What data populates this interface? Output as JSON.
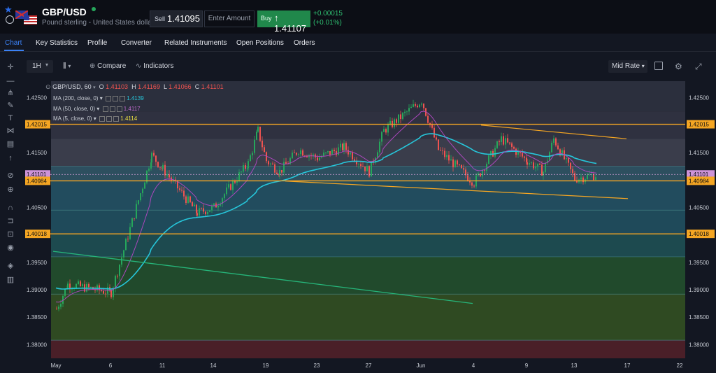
{
  "header": {
    "symbol": "GBP/USD",
    "description": "Pound sterling - United States dollar",
    "sell_label": "Sell",
    "sell_price": "1.41095",
    "amount_placeholder": "Enter Amount",
    "buy_label": "Buy",
    "buy_arrow": "↑",
    "buy_price": "1.41107",
    "change_abs": "+0.00015",
    "change_pct": "(+0.01%)"
  },
  "tabs": [
    "Chart",
    "Key Statistics",
    "Profile",
    "Converter",
    "Related Instruments",
    "Open Positions",
    "Orders"
  ],
  "toolbar": {
    "interval": "1H",
    "compare_label": "Compare",
    "indicators_label": "Indicators",
    "price_mode": "Mid Rate"
  },
  "legend": {
    "series": "GBP/USD, 60",
    "o_label": "O",
    "o": "1.41103",
    "h_label": "H",
    "h": "1.41169",
    "l_label": "L",
    "l": "1.41066",
    "c_label": "C",
    "c": "1.41101",
    "ma200_label": "MA (200, close, 0)",
    "ma200_value": "1.4139",
    "ma50_label": "MA (50, close, 0)",
    "ma50_value": "1.4117",
    "ma5_label": "MA (5, close, 0)",
    "ma5_value": "1.4114"
  },
  "colors": {
    "up": "#26a65b",
    "down": "#ef5350",
    "ma200": "#26c6da",
    "ma50": "#ab47bc",
    "ma5": "#f0e442",
    "level": "#f5a623",
    "accent": "#3b82f6"
  },
  "chart_data": {
    "type": "candlestick",
    "x_tick_labels": [
      "May",
      "6",
      "11",
      "14",
      "19",
      "23",
      "27",
      "Jun",
      "4",
      "9",
      "13",
      "17",
      "22"
    ],
    "y_tick_labels": [
      "1.42500",
      "1.42015",
      "1.41500",
      "1.41101",
      "1.40984",
      "1.40500",
      "1.40018",
      "1.39500",
      "1.39000",
      "1.38500",
      "1.38000"
    ],
    "ylim": [
      1.3775,
      1.428
    ],
    "horizontal_levels": [
      1.42015,
      1.40984,
      1.40018
    ],
    "last_price": 1.41101,
    "close_path": [
      {
        "x": "May",
        "y": 1.3865
      },
      {
        "x": "4",
        "y": 1.391
      },
      {
        "x": "6",
        "y": 1.3895
      },
      {
        "x": "10",
        "y": 1.4145
      },
      {
        "x": "11",
        "y": 1.412
      },
      {
        "x": "13",
        "y": 1.404
      },
      {
        "x": "14",
        "y": 1.405
      },
      {
        "x": "17",
        "y": 1.413
      },
      {
        "x": "18",
        "y": 1.419
      },
      {
        "x": "19",
        "y": 1.4135
      },
      {
        "x": "20",
        "y": 1.4115
      },
      {
        "x": "21",
        "y": 1.4155
      },
      {
        "x": "23",
        "y": 1.414
      },
      {
        "x": "25",
        "y": 1.416
      },
      {
        "x": "27",
        "y": 1.4115
      },
      {
        "x": "28",
        "y": 1.419
      },
      {
        "x": "Jun",
        "y": 1.4245
      },
      {
        "x": "2",
        "y": 1.4155
      },
      {
        "x": "4",
        "y": 1.4095
      },
      {
        "x": "7",
        "y": 1.4175
      },
      {
        "x": "9",
        "y": 1.4135
      },
      {
        "x": "11",
        "y": 1.4115
      },
      {
        "x": "12",
        "y": 1.4175
      },
      {
        "x": "13",
        "y": 1.4102
      },
      {
        "x": "14",
        "y": 1.41101
      }
    ],
    "ma200_latest": 1.4139,
    "ma50_latest": 1.4117,
    "ma5_latest": 1.4114,
    "grid": false
  }
}
